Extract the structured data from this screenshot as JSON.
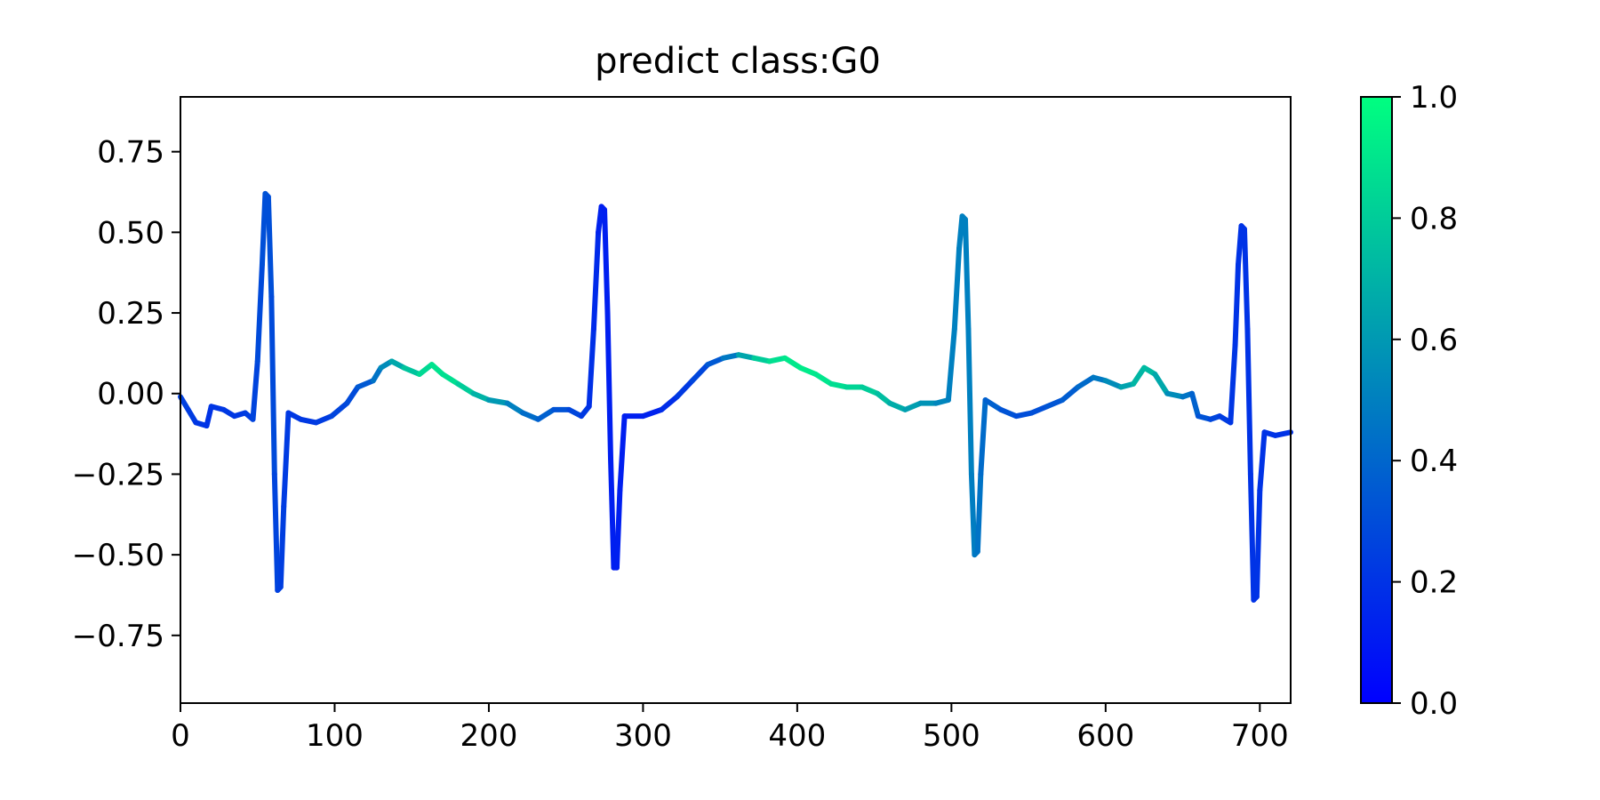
{
  "chart_data": {
    "type": "line",
    "title": "predict class:G0",
    "xlabel": "",
    "ylabel": "",
    "xlim": [
      0,
      720
    ],
    "ylim": [
      -0.96,
      0.92
    ],
    "x_ticks": [
      0,
      100,
      200,
      300,
      400,
      500,
      600,
      700
    ],
    "x_tick_labels": [
      "0",
      "100",
      "200",
      "300",
      "400",
      "500",
      "600",
      "700"
    ],
    "y_ticks": [
      0.75,
      0.5,
      0.25,
      0.0,
      -0.25,
      -0.5,
      -0.75
    ],
    "y_tick_labels": [
      "0.75",
      "0.50",
      "0.25",
      "0.00",
      "−0.25",
      "−0.50",
      "−0.75"
    ],
    "grid": false,
    "colormap": "winter",
    "colorbar": {
      "range": [
        0.0,
        1.0
      ],
      "ticks": [
        0.0,
        0.2,
        0.4,
        0.6,
        0.8,
        1.0
      ],
      "tick_labels": [
        "0.0",
        "0.2",
        "0.4",
        "0.6",
        "0.8",
        "1.0"
      ],
      "low_color": "#0000ff",
      "high_color": "#00ff80"
    },
    "series": [
      {
        "keypoints": [
          {
            "x": 0,
            "y": -0.01,
            "c": 0.25
          },
          {
            "x": 5,
            "y": -0.05,
            "c": 0.25
          },
          {
            "x": 10,
            "y": -0.09,
            "c": 0.22
          },
          {
            "x": 17,
            "y": -0.1,
            "c": 0.2
          },
          {
            "x": 20,
            "y": -0.04,
            "c": 0.2
          },
          {
            "x": 28,
            "y": -0.05,
            "c": 0.22
          },
          {
            "x": 35,
            "y": -0.07,
            "c": 0.22
          },
          {
            "x": 42,
            "y": -0.06,
            "c": 0.22
          },
          {
            "x": 47,
            "y": -0.08,
            "c": 0.25
          },
          {
            "x": 50,
            "y": 0.1,
            "c": 0.28
          },
          {
            "x": 53,
            "y": 0.4,
            "c": 0.3
          },
          {
            "x": 55,
            "y": 0.62,
            "c": 0.32
          },
          {
            "x": 57,
            "y": 0.61,
            "c": 0.32
          },
          {
            "x": 59,
            "y": 0.3,
            "c": 0.3
          },
          {
            "x": 61,
            "y": -0.25,
            "c": 0.28
          },
          {
            "x": 63,
            "y": -0.61,
            "c": 0.25
          },
          {
            "x": 65,
            "y": -0.6,
            "c": 0.25
          },
          {
            "x": 67,
            "y": -0.35,
            "c": 0.24
          },
          {
            "x": 70,
            "y": -0.06,
            "c": 0.22
          },
          {
            "x": 78,
            "y": -0.08,
            "c": 0.22
          },
          {
            "x": 88,
            "y": -0.09,
            "c": 0.22
          },
          {
            "x": 98,
            "y": -0.07,
            "c": 0.25
          },
          {
            "x": 108,
            "y": -0.03,
            "c": 0.28
          },
          {
            "x": 115,
            "y": 0.02,
            "c": 0.3
          },
          {
            "x": 125,
            "y": 0.04,
            "c": 0.4
          },
          {
            "x": 130,
            "y": 0.08,
            "c": 0.5
          },
          {
            "x": 137,
            "y": 0.1,
            "c": 0.6
          },
          {
            "x": 145,
            "y": 0.08,
            "c": 0.72
          },
          {
            "x": 155,
            "y": 0.06,
            "c": 0.82
          },
          {
            "x": 163,
            "y": 0.09,
            "c": 0.88
          },
          {
            "x": 170,
            "y": 0.06,
            "c": 0.9
          },
          {
            "x": 180,
            "y": 0.03,
            "c": 0.85
          },
          {
            "x": 190,
            "y": 0.0,
            "c": 0.75
          },
          {
            "x": 200,
            "y": -0.02,
            "c": 0.65
          },
          {
            "x": 212,
            "y": -0.03,
            "c": 0.55
          },
          {
            "x": 222,
            "y": -0.06,
            "c": 0.45
          },
          {
            "x": 232,
            "y": -0.08,
            "c": 0.4
          },
          {
            "x": 242,
            "y": -0.05,
            "c": 0.35
          },
          {
            "x": 252,
            "y": -0.05,
            "c": 0.3
          },
          {
            "x": 260,
            "y": -0.07,
            "c": 0.25
          },
          {
            "x": 265,
            "y": -0.04,
            "c": 0.2
          },
          {
            "x": 268,
            "y": 0.2,
            "c": 0.18
          },
          {
            "x": 271,
            "y": 0.5,
            "c": 0.15
          },
          {
            "x": 273,
            "y": 0.58,
            "c": 0.12
          },
          {
            "x": 275,
            "y": 0.57,
            "c": 0.12
          },
          {
            "x": 277,
            "y": 0.25,
            "c": 0.12
          },
          {
            "x": 279,
            "y": -0.2,
            "c": 0.12
          },
          {
            "x": 281,
            "y": -0.54,
            "c": 0.12
          },
          {
            "x": 283,
            "y": -0.54,
            "c": 0.12
          },
          {
            "x": 285,
            "y": -0.3,
            "c": 0.12
          },
          {
            "x": 288,
            "y": -0.07,
            "c": 0.12
          },
          {
            "x": 300,
            "y": -0.07,
            "c": 0.12
          },
          {
            "x": 312,
            "y": -0.05,
            "c": 0.15
          },
          {
            "x": 322,
            "y": -0.01,
            "c": 0.2
          },
          {
            "x": 332,
            "y": 0.04,
            "c": 0.25
          },
          {
            "x": 342,
            "y": 0.09,
            "c": 0.3
          },
          {
            "x": 352,
            "y": 0.11,
            "c": 0.4
          },
          {
            "x": 362,
            "y": 0.12,
            "c": 0.55
          },
          {
            "x": 372,
            "y": 0.11,
            "c": 0.75
          },
          {
            "x": 382,
            "y": 0.1,
            "c": 0.85
          },
          {
            "x": 392,
            "y": 0.11,
            "c": 0.9
          },
          {
            "x": 402,
            "y": 0.08,
            "c": 0.92
          },
          {
            "x": 412,
            "y": 0.06,
            "c": 0.92
          },
          {
            "x": 422,
            "y": 0.03,
            "c": 0.88
          },
          {
            "x": 432,
            "y": 0.02,
            "c": 0.85
          },
          {
            "x": 442,
            "y": 0.02,
            "c": 0.82
          },
          {
            "x": 452,
            "y": 0.0,
            "c": 0.78
          },
          {
            "x": 460,
            "y": -0.03,
            "c": 0.7
          },
          {
            "x": 470,
            "y": -0.05,
            "c": 0.65
          },
          {
            "x": 480,
            "y": -0.03,
            "c": 0.6
          },
          {
            "x": 490,
            "y": -0.03,
            "c": 0.55
          },
          {
            "x": 498,
            "y": -0.02,
            "c": 0.5
          },
          {
            "x": 502,
            "y": 0.2,
            "c": 0.5
          },
          {
            "x": 505,
            "y": 0.45,
            "c": 0.5
          },
          {
            "x": 507,
            "y": 0.55,
            "c": 0.5
          },
          {
            "x": 509,
            "y": 0.54,
            "c": 0.5
          },
          {
            "x": 511,
            "y": 0.2,
            "c": 0.5
          },
          {
            "x": 513,
            "y": -0.25,
            "c": 0.5
          },
          {
            "x": 515,
            "y": -0.5,
            "c": 0.48
          },
          {
            "x": 517,
            "y": -0.49,
            "c": 0.46
          },
          {
            "x": 519,
            "y": -0.25,
            "c": 0.44
          },
          {
            "x": 522,
            "y": -0.02,
            "c": 0.4
          },
          {
            "x": 532,
            "y": -0.05,
            "c": 0.35
          },
          {
            "x": 542,
            "y": -0.07,
            "c": 0.3
          },
          {
            "x": 552,
            "y": -0.06,
            "c": 0.3
          },
          {
            "x": 562,
            "y": -0.04,
            "c": 0.32
          },
          {
            "x": 572,
            "y": -0.02,
            "c": 0.35
          },
          {
            "x": 582,
            "y": 0.02,
            "c": 0.38
          },
          {
            "x": 592,
            "y": 0.05,
            "c": 0.45
          },
          {
            "x": 600,
            "y": 0.04,
            "c": 0.5
          },
          {
            "x": 610,
            "y": 0.02,
            "c": 0.6
          },
          {
            "x": 618,
            "y": 0.03,
            "c": 0.68
          },
          {
            "x": 625,
            "y": 0.08,
            "c": 0.75
          },
          {
            "x": 632,
            "y": 0.06,
            "c": 0.72
          },
          {
            "x": 640,
            "y": 0.0,
            "c": 0.6
          },
          {
            "x": 650,
            "y": -0.01,
            "c": 0.5
          },
          {
            "x": 656,
            "y": 0.0,
            "c": 0.42
          },
          {
            "x": 660,
            "y": -0.07,
            "c": 0.35
          },
          {
            "x": 668,
            "y": -0.08,
            "c": 0.3
          },
          {
            "x": 674,
            "y": -0.07,
            "c": 0.25
          },
          {
            "x": 681,
            "y": -0.09,
            "c": 0.22
          },
          {
            "x": 684,
            "y": 0.15,
            "c": 0.2
          },
          {
            "x": 686,
            "y": 0.4,
            "c": 0.2
          },
          {
            "x": 688,
            "y": 0.52,
            "c": 0.2
          },
          {
            "x": 690,
            "y": 0.51,
            "c": 0.2
          },
          {
            "x": 692,
            "y": 0.2,
            "c": 0.2
          },
          {
            "x": 694,
            "y": -0.25,
            "c": 0.2
          },
          {
            "x": 696,
            "y": -0.64,
            "c": 0.2
          },
          {
            "x": 698,
            "y": -0.63,
            "c": 0.2
          },
          {
            "x": 700,
            "y": -0.3,
            "c": 0.2
          },
          {
            "x": 703,
            "y": -0.12,
            "c": 0.2
          },
          {
            "x": 710,
            "y": -0.13,
            "c": 0.2
          },
          {
            "x": 720,
            "y": -0.12,
            "c": 0.2
          }
        ]
      }
    ]
  }
}
